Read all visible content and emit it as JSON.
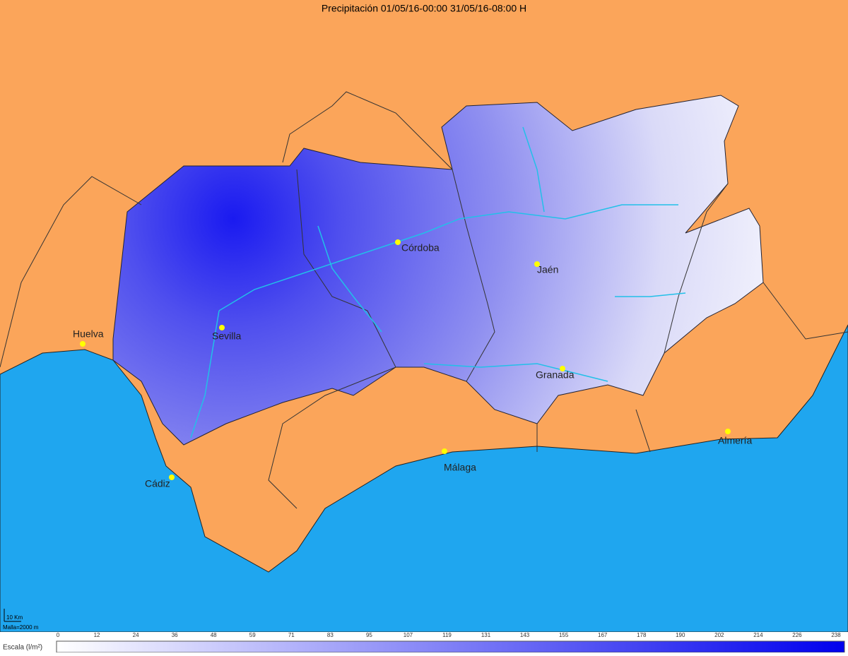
{
  "title": "Precipitación 01/05/16-00:00 31/05/16-08:00 H",
  "cities": [
    "Córdoba",
    "Jaén",
    "Huelva",
    "Sevilla",
    "Granada",
    "Almería",
    "Málaga",
    "Cádiz"
  ],
  "scale": {
    "label": "Escala (l/m²)",
    "ticks": [
      0,
      12,
      24,
      36,
      48,
      59,
      71,
      83,
      95,
      107,
      119,
      131,
      143,
      155,
      167,
      178,
      190,
      202,
      214,
      226,
      238
    ]
  },
  "scale_bar": {
    "length": "10 Km",
    "grid": "Malla=2000 m"
  }
}
